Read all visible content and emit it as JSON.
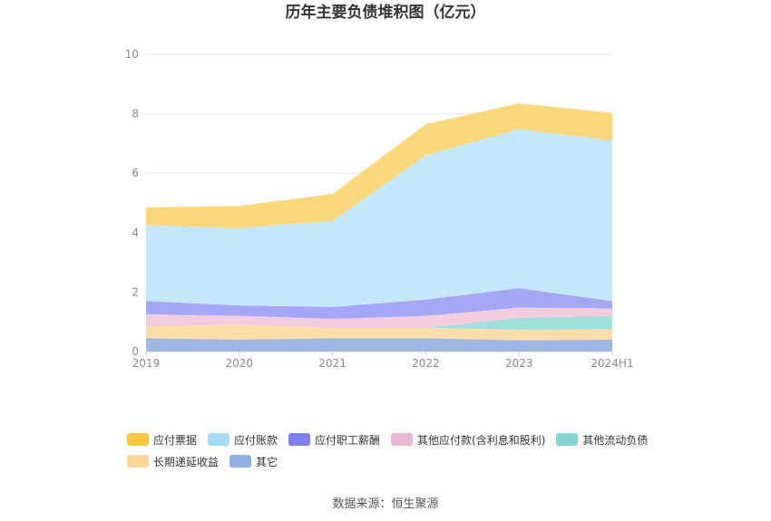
{
  "title": "历年主要负债堆积图（亿元）",
  "source": "数据来源：恒生聚源",
  "chart_data": {
    "type": "area",
    "stacked": true,
    "categories": [
      "2019",
      "2020",
      "2021",
      "2022",
      "2023",
      "2024H1"
    ],
    "ylim": [
      0,
      10
    ],
    "yticks": [
      "0",
      "2",
      "4",
      "6",
      "8",
      "10"
    ],
    "grid": true,
    "legend_position": "bottom",
    "series": [
      {
        "name": "其它",
        "color": "#9bb6e2",
        "values": [
          0.45,
          0.4,
          0.45,
          0.45,
          0.38,
          0.4
        ]
      },
      {
        "name": "长期递延收益",
        "color": "#ffdca8",
        "values": [
          0.4,
          0.5,
          0.35,
          0.35,
          0.35,
          0.35
        ]
      },
      {
        "name": "其他流动负债",
        "color": "#9fe0dc",
        "values": [
          0.0,
          0.0,
          0.0,
          0.0,
          0.4,
          0.45
        ]
      },
      {
        "name": "其他应付款(含利息和股利)",
        "color": "#f3cce0",
        "values": [
          0.4,
          0.3,
          0.3,
          0.4,
          0.35,
          0.25
        ]
      },
      {
        "name": "应付职工薪酬",
        "color": "#a4a6f6",
        "values": [
          0.45,
          0.35,
          0.4,
          0.55,
          0.65,
          0.25
        ]
      },
      {
        "name": "应付账款",
        "color": "#c4e8fb",
        "values": [
          2.55,
          2.6,
          2.9,
          4.85,
          5.35,
          5.4
        ]
      },
      {
        "name": "应付票据",
        "color": "#fdd77a",
        "values": [
          0.6,
          0.75,
          0.9,
          1.05,
          0.87,
          0.93
        ]
      }
    ],
    "legend_order": [
      "应付票据",
      "应付账款",
      "应付职工薪酬",
      "其他应付款(含利息和股利)",
      "其他流动负债",
      "长期递延收益",
      "其它"
    ],
    "legend_colors": {
      "应付票据": "#fdc53f",
      "应付账款": "#a7dcf9",
      "应付职工薪酬": "#7b7ff0",
      "其他应付款(含利息和股利)": "#e9b6d6",
      "其他流动负债": "#86d4d2",
      "长期递延收益": "#ffd79c",
      "其它": "#8fb0e0"
    }
  }
}
